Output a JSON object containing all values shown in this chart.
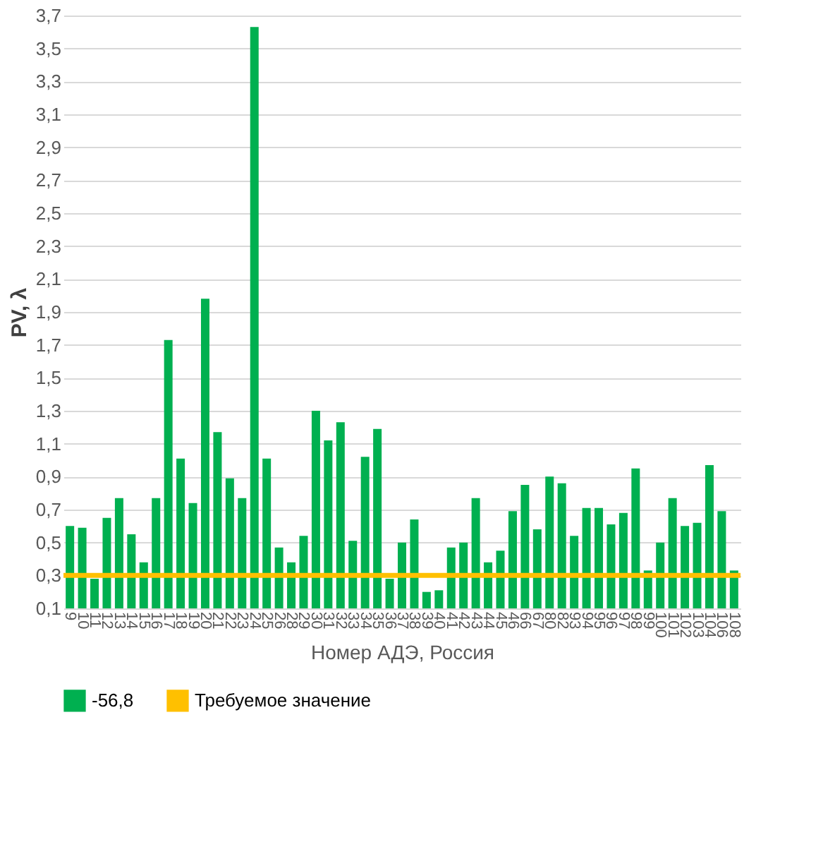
{
  "chart_data": {
    "type": "bar",
    "xlabel": "Номер АДЭ, Россия",
    "ylabel": "PV, λ",
    "categories": [
      "9",
      "10",
      "11",
      "12",
      "13",
      "14",
      "15",
      "16",
      "17",
      "18",
      "19",
      "20",
      "21",
      "22",
      "23",
      "24",
      "25",
      "26",
      "28",
      "29",
      "30",
      "31",
      "32",
      "33",
      "34",
      "35",
      "36",
      "37",
      "38",
      "39",
      "40",
      "41",
      "42",
      "43",
      "44",
      "45",
      "46",
      "66",
      "67",
      "80",
      "82",
      "93",
      "94",
      "95",
      "96",
      "97",
      "98",
      "99",
      "100",
      "101",
      "102",
      "103",
      "104",
      "106",
      "108"
    ],
    "series": [
      {
        "name": "-56,8",
        "color": "#00b050",
        "values": [
          0.6,
          0.59,
          0.28,
          0.65,
          0.77,
          0.55,
          0.38,
          0.77,
          1.73,
          1.01,
          0.74,
          1.98,
          1.17,
          0.89,
          0.77,
          3.63,
          1.01,
          0.47,
          0.38,
          0.54,
          1.3,
          1.12,
          1.23,
          0.51,
          1.02,
          1.19,
          0.28,
          0.5,
          0.64,
          0.2,
          0.21,
          0.47,
          0.5,
          0.77,
          0.38,
          0.45,
          0.69,
          0.85,
          0.58,
          0.9,
          0.86,
          0.54,
          0.71,
          0.71,
          0.61,
          0.68,
          0.95,
          0.33,
          0.5,
          0.77,
          0.6,
          0.62,
          0.97,
          0.69,
          0.33
        ]
      }
    ],
    "ref_lines": [
      {
        "axis": "y",
        "value": 0.3,
        "label": "Требуемое значение",
        "color": "#ffc000"
      }
    ],
    "ylim": [
      0.1,
      3.7
    ],
    "yticks": [
      {
        "value": 0.1,
        "label": "0,1"
      },
      {
        "value": 0.3,
        "label": "0,3"
      },
      {
        "value": 0.5,
        "label": "0,5"
      },
      {
        "value": 0.7,
        "label": "0,7"
      },
      {
        "value": 0.9,
        "label": "0,9"
      },
      {
        "value": 1.1,
        "label": "1,1"
      },
      {
        "value": 1.3,
        "label": "1,3"
      },
      {
        "value": 1.5,
        "label": "1,5"
      },
      {
        "value": 1.7,
        "label": "1,7"
      },
      {
        "value": 1.9,
        "label": "1,9"
      },
      {
        "value": 2.1,
        "label": "2,1"
      },
      {
        "value": 2.3,
        "label": "2,3"
      },
      {
        "value": 2.5,
        "label": "2,5"
      },
      {
        "value": 2.7,
        "label": "2,7"
      },
      {
        "value": 2.9,
        "label": "2,9"
      },
      {
        "value": 3.1,
        "label": "3,1"
      },
      {
        "value": 3.3,
        "label": "3,3"
      },
      {
        "value": 3.5,
        "label": "3,5"
      },
      {
        "value": 3.7,
        "label": "3,7"
      }
    ],
    "grid": "y",
    "legend": "bottom"
  }
}
